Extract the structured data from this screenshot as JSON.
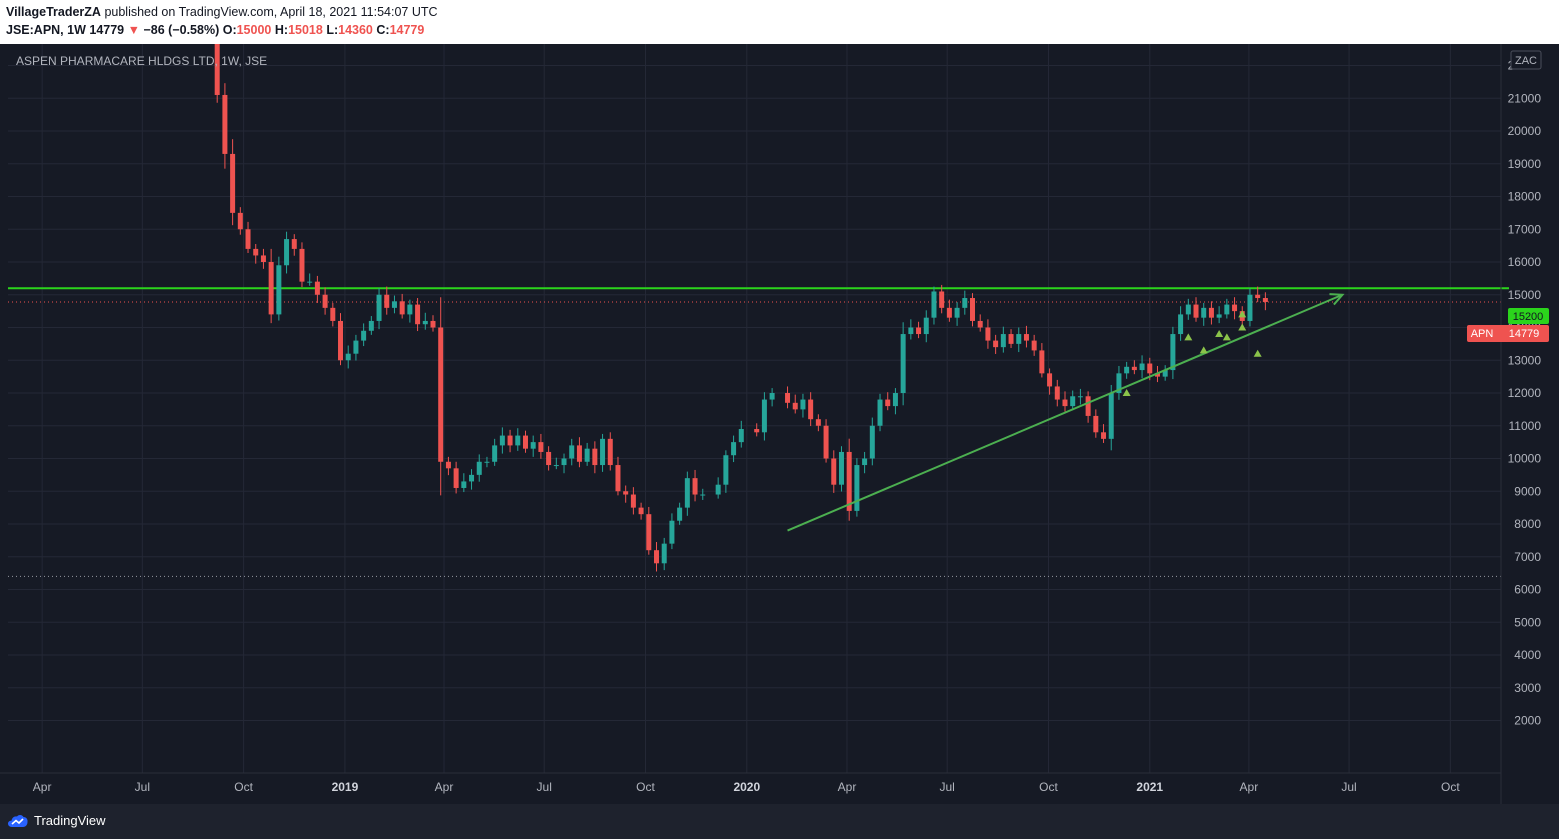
{
  "header": {
    "publisher": "VillageTraderZA",
    "published_text": "published on TradingView.com, April 18, 2021 11:54:07 UTC",
    "symbol_line": "JSE:APN, 1W",
    "last": "14779",
    "change_arrow": "▼",
    "change": "−86 (−0.58%)",
    "o_label": "O:",
    "o_value": "15000",
    "h_label": "H:",
    "h_value": "15018",
    "l_label": "L:",
    "l_value": "14360",
    "c_label": "C:",
    "c_value": "14779"
  },
  "chart": {
    "title": "ASPEN PHARMACARE HLDGS LTD, 1W, JSE",
    "currency": "ZAC",
    "resistance_label": "15200",
    "price_tag_symbol": "APN",
    "price_tag_value": "14779"
  },
  "footer": {
    "brand": "TradingView"
  },
  "colors": {
    "background": "#161a25",
    "grid": "#242836",
    "up": "#26a69a",
    "down": "#ef5350",
    "resistance": "#2bd41c",
    "trendline": "#4caf50",
    "marker": "#8bc34a",
    "axis_text": "#b2b5be"
  },
  "chart_data": {
    "type": "candlestick",
    "title": "ASPEN PHARMACARE HLDGS LTD, 1W, JSE",
    "ylabel": "ZAC",
    "ylim": [
      1500,
      23000
    ],
    "yticks": [
      2000,
      3000,
      4000,
      5000,
      6000,
      7000,
      8000,
      9000,
      10000,
      11000,
      12000,
      13000,
      14000,
      15000,
      16000,
      17000,
      18000,
      19000,
      20000,
      21000,
      22000
    ],
    "xlim": [
      "2018-03-01",
      "2021-11-16"
    ],
    "xticks": [
      {
        "date": "2018-04-01",
        "label": "Apr"
      },
      {
        "date": "2018-07-01",
        "label": "Jul"
      },
      {
        "date": "2018-10-01",
        "label": "Oct"
      },
      {
        "date": "2019-01-01",
        "label": "2019"
      },
      {
        "date": "2019-04-01",
        "label": "Apr"
      },
      {
        "date": "2019-07-01",
        "label": "Jul"
      },
      {
        "date": "2019-10-01",
        "label": "Oct"
      },
      {
        "date": "2020-01-01",
        "label": "2020"
      },
      {
        "date": "2020-04-01",
        "label": "Apr"
      },
      {
        "date": "2020-07-01",
        "label": "Jul"
      },
      {
        "date": "2020-10-01",
        "label": "Oct"
      },
      {
        "date": "2021-01-01",
        "label": "2021"
      },
      {
        "date": "2021-04-01",
        "label": "Apr"
      },
      {
        "date": "2021-07-01",
        "label": "Jul"
      },
      {
        "date": "2021-10-01",
        "label": "Oct"
      }
    ],
    "closes": [
      [
        "2018-09-07",
        21100
      ],
      [
        "2018-09-14",
        19300
      ],
      [
        "2018-09-21",
        17500
      ],
      [
        "2018-09-28",
        17000
      ],
      [
        "2018-10-05",
        16400
      ],
      [
        "2018-10-12",
        16200
      ],
      [
        "2018-10-19",
        16000
      ],
      [
        "2018-10-26",
        14400
      ],
      [
        "2018-11-02",
        15900
      ],
      [
        "2018-11-09",
        16700
      ],
      [
        "2018-11-16",
        16400
      ],
      [
        "2018-11-23",
        15400
      ],
      [
        "2018-11-30",
        15400
      ],
      [
        "2018-12-07",
        15000
      ],
      [
        "2018-12-14",
        14600
      ],
      [
        "2018-12-21",
        14200
      ],
      [
        "2018-12-28",
        13000
      ],
      [
        "2019-01-04",
        13200
      ],
      [
        "2019-01-11",
        13600
      ],
      [
        "2019-01-18",
        13900
      ],
      [
        "2019-01-25",
        14200
      ],
      [
        "2019-02-01",
        15000
      ],
      [
        "2019-02-08",
        14600
      ],
      [
        "2019-02-15",
        14800
      ],
      [
        "2019-02-22",
        14400
      ],
      [
        "2019-03-01",
        14700
      ],
      [
        "2019-03-08",
        14100
      ],
      [
        "2019-03-15",
        14200
      ],
      [
        "2019-03-22",
        14000
      ],
      [
        "2019-03-29",
        9900
      ],
      [
        "2019-04-05",
        9700
      ],
      [
        "2019-04-12",
        9100
      ],
      [
        "2019-04-19",
        9300
      ],
      [
        "2019-04-26",
        9500
      ],
      [
        "2019-05-03",
        9900
      ],
      [
        "2019-05-10",
        9900
      ],
      [
        "2019-05-17",
        10400
      ],
      [
        "2019-05-24",
        10700
      ],
      [
        "2019-05-31",
        10400
      ],
      [
        "2019-06-07",
        10700
      ],
      [
        "2019-06-14",
        10300
      ],
      [
        "2019-06-21",
        10500
      ],
      [
        "2019-06-28",
        10200
      ],
      [
        "2019-07-05",
        9800
      ],
      [
        "2019-07-12",
        9800
      ],
      [
        "2019-07-19",
        10000
      ],
      [
        "2019-07-26",
        10400
      ],
      [
        "2019-08-02",
        9900
      ],
      [
        "2019-08-09",
        10300
      ],
      [
        "2019-08-16",
        9800
      ],
      [
        "2019-08-23",
        10600
      ],
      [
        "2019-08-30",
        9800
      ],
      [
        "2019-09-06",
        9000
      ],
      [
        "2019-09-13",
        8900
      ],
      [
        "2019-09-20",
        8500
      ],
      [
        "2019-09-27",
        8300
      ],
      [
        "2019-10-04",
        7200
      ],
      [
        "2019-10-11",
        6800
      ],
      [
        "2019-10-18",
        7400
      ],
      [
        "2019-10-25",
        8100
      ],
      [
        "2019-11-01",
        8500
      ],
      [
        "2019-11-08",
        9400
      ],
      [
        "2019-11-15",
        8900
      ],
      [
        "2019-11-22",
        8900
      ],
      [
        "2019-12-06",
        9200
      ],
      [
        "2019-12-13",
        10100
      ],
      [
        "2019-12-20",
        10500
      ],
      [
        "2019-12-27",
        10900
      ],
      [
        "2020-01-10",
        10800
      ],
      [
        "2020-01-17",
        11800
      ],
      [
        "2020-01-24",
        12000
      ],
      [
        "2020-02-07",
        11700
      ],
      [
        "2020-02-14",
        11500
      ],
      [
        "2020-02-21",
        11800
      ],
      [
        "2020-02-28",
        11200
      ],
      [
        "2020-03-06",
        11000
      ],
      [
        "2020-03-13",
        10000
      ],
      [
        "2020-03-20",
        9200
      ],
      [
        "2020-03-27",
        10200
      ],
      [
        "2020-04-03",
        8400
      ],
      [
        "2020-04-10",
        9800
      ],
      [
        "2020-04-17",
        10000
      ],
      [
        "2020-04-24",
        11000
      ],
      [
        "2020-05-01",
        11800
      ],
      [
        "2020-05-08",
        11600
      ],
      [
        "2020-05-15",
        12000
      ],
      [
        "2020-05-22",
        13800
      ],
      [
        "2020-05-29",
        14000
      ],
      [
        "2020-06-05",
        13800
      ],
      [
        "2020-06-12",
        14300
      ],
      [
        "2020-06-19",
        15100
      ],
      [
        "2020-06-26",
        14600
      ],
      [
        "2020-07-03",
        14300
      ],
      [
        "2020-07-10",
        14600
      ],
      [
        "2020-07-17",
        14900
      ],
      [
        "2020-07-24",
        14200
      ],
      [
        "2020-07-31",
        14000
      ],
      [
        "2020-08-07",
        13600
      ],
      [
        "2020-08-14",
        13400
      ],
      [
        "2020-08-21",
        13800
      ],
      [
        "2020-08-28",
        13500
      ],
      [
        "2020-09-04",
        13800
      ],
      [
        "2020-09-11",
        13600
      ],
      [
        "2020-09-18",
        13300
      ],
      [
        "2020-09-25",
        12600
      ],
      [
        "2020-10-02",
        12200
      ],
      [
        "2020-10-09",
        11800
      ],
      [
        "2020-10-16",
        11600
      ],
      [
        "2020-10-23",
        11900
      ],
      [
        "2020-10-30",
        11900
      ],
      [
        "2020-11-06",
        11300
      ],
      [
        "2020-11-13",
        10800
      ],
      [
        "2020-11-20",
        10600
      ],
      [
        "2020-11-27",
        12000
      ],
      [
        "2020-12-04",
        12600
      ],
      [
        "2020-12-11",
        12800
      ],
      [
        "2020-12-18",
        12700
      ],
      [
        "2020-12-25",
        12900
      ],
      [
        "2021-01-01",
        12600
      ],
      [
        "2021-01-08",
        12500
      ],
      [
        "2021-01-15",
        12700
      ],
      [
        "2021-01-22",
        13800
      ],
      [
        "2021-01-29",
        14400
      ],
      [
        "2021-02-05",
        14700
      ],
      [
        "2021-02-12",
        14300
      ],
      [
        "2021-02-19",
        14600
      ],
      [
        "2021-02-26",
        14300
      ],
      [
        "2021-03-05",
        14400
      ],
      [
        "2021-03-12",
        14700
      ],
      [
        "2021-03-19",
        14500
      ],
      [
        "2021-03-26",
        14200
      ],
      [
        "2021-04-02",
        15000
      ],
      [
        "2021-04-09",
        14900
      ],
      [
        "2021-04-16",
        14779
      ]
    ],
    "resistance": 15200,
    "support_dotted": 6400,
    "last_price": 14779,
    "trendline": {
      "start": [
        "2020-02-07",
        7800
      ],
      "end": [
        "2021-06-25",
        15000
      ]
    },
    "markers": [
      [
        "2020-12-11",
        12000
      ],
      [
        "2021-02-05",
        13700
      ],
      [
        "2021-02-19",
        13300
      ],
      [
        "2021-03-05",
        13800
      ],
      [
        "2021-03-12",
        13700
      ],
      [
        "2021-03-26",
        14000
      ],
      [
        "2021-03-26",
        14400
      ],
      [
        "2021-04-09",
        13200
      ]
    ]
  }
}
